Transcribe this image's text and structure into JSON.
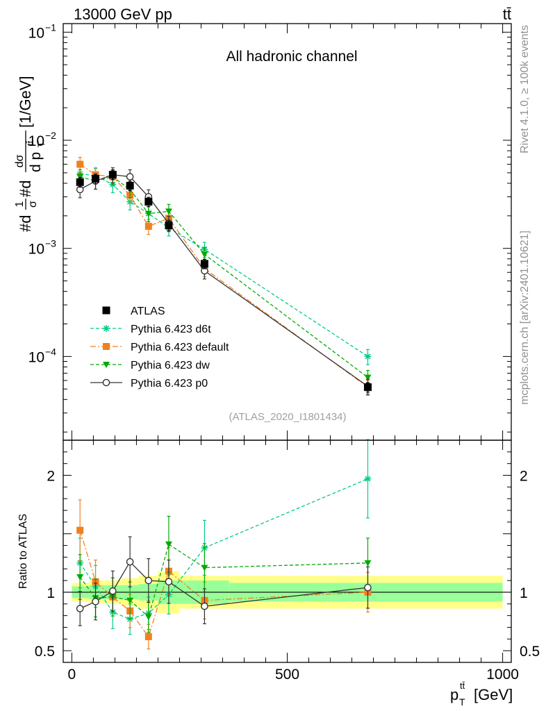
{
  "header": {
    "energy_label": "13000 GeV pp",
    "process_label": "tt̄",
    "side_label_top": "Rivet 4.1.0, ≥ 100k events",
    "side_label_bottom": "mcplots.cern.ch [arXiv:2401.10621]",
    "channel_label": "All hadronic channel",
    "analysis_id": "(ATLAS_2020_I1801434)"
  },
  "colors": {
    "data": "#000000",
    "d6t": "#00cc88",
    "default": "#f08020",
    "dw": "#00aa00",
    "p0": "#333333",
    "band_inner": "#99ff99",
    "band_outer": "#ffff88"
  },
  "chart_data": [
    {
      "type": "line",
      "panel": "main",
      "title": "All hadronic channel",
      "xlabel": "",
      "ylabel": "#d1/σ#ddσ^{tt̄}/d p_T^{tt̄} [1/GeV]",
      "ylabel_parts": {
        "prefix": "#d",
        "frac1_num": "1",
        "frac1_den": "σ",
        "mid": "#d",
        "frac2_num": "dσ",
        "frac2_den": "d p",
        "sub": "T",
        "sup": "tt̄",
        "unit": "[1/GeV]"
      },
      "yscale": "log",
      "xlim": [
        -20,
        1020
      ],
      "ylim": [
        1.68e-05,
        0.12
      ],
      "y_ticks": [
        0.1,
        0.01,
        0.001,
        0.0001
      ],
      "y_tick_labels": [
        {
          "base": "10",
          "exp": "−1"
        },
        {
          "base": "10",
          "exp": "−2"
        },
        {
          "base": "10",
          "exp": "−3"
        },
        {
          "base": "10",
          "exp": "−4"
        }
      ],
      "series": [
        {
          "name": "ATLAS",
          "key": "data",
          "x": [
            19,
            55,
            95,
            135,
            178,
            225,
            308,
            687
          ],
          "y": [
            0.0041,
            0.0044,
            0.0048,
            0.0038,
            0.0027,
            0.00163,
            0.00072,
            5.2e-05
          ]
        },
        {
          "name": "Pythia 6.423 d6t",
          "key": "d6t",
          "x": [
            19,
            55,
            95,
            135,
            178,
            225,
            308,
            687
          ],
          "y": [
            0.0049,
            0.0047,
            0.0039,
            0.0027,
            0.0021,
            0.00155,
            0.00098,
            0.0001
          ]
        },
        {
          "name": "Pythia 6.423 default",
          "key": "default",
          "x": [
            19,
            55,
            95,
            135,
            178,
            225,
            308,
            687
          ],
          "y": [
            0.006,
            0.0048,
            0.0046,
            0.0031,
            0.0016,
            0.0019,
            0.00065,
            5.2e-05
          ]
        },
        {
          "name": "Pythia 6.423 dw",
          "key": "dw",
          "x": [
            19,
            55,
            95,
            135,
            178,
            225,
            308,
            687
          ],
          "y": [
            0.0046,
            0.0042,
            0.0046,
            0.0035,
            0.0021,
            0.0022,
            0.00088,
            6.4e-05
          ]
        },
        {
          "name": "Pythia 6.423 p0",
          "key": "p0",
          "x": [
            19,
            55,
            95,
            135,
            178,
            225,
            308,
            687
          ],
          "y": [
            0.0035,
            0.0042,
            0.0048,
            0.0046,
            0.003,
            0.0017,
            0.00062,
            5.3e-05
          ]
        }
      ],
      "legend": [
        "ATLAS",
        "Pythia 6.423 d6t",
        "Pythia 6.423 default",
        "Pythia 6.423 dw",
        "Pythia 6.423 p0"
      ]
    },
    {
      "type": "line",
      "panel": "ratio",
      "xlabel": "p_T^{tt̄} [GeV]",
      "xlabel_parts": {
        "base": "p",
        "sub": "T",
        "sup": "tt̄",
        "unit": "[GeV]"
      },
      "ylabel": "Ratio to ATLAS",
      "xlim": [
        -20,
        1020
      ],
      "ylim": [
        0.4,
        2.3
      ],
      "x_ticks": [
        0,
        500,
        1000
      ],
      "x_tick_labels": [
        "0",
        "500",
        "1000"
      ],
      "y_ticks": [
        0.5,
        1,
        2
      ],
      "y_tick_labels": [
        "0.5",
        "1",
        "2"
      ],
      "bins": [
        0,
        40,
        75,
        115,
        155,
        200,
        250,
        365,
        1000
      ],
      "band_inner_half": [
        0.05,
        0.06,
        0.06,
        0.06,
        0.07,
        0.1,
        0.1,
        0.08
      ],
      "band_outer_half": [
        0.08,
        0.1,
        0.1,
        0.12,
        0.14,
        0.18,
        0.14,
        0.14
      ],
      "series": [
        {
          "name": "Pythia 6.423 d6t",
          "key": "d6t",
          "x": [
            19,
            55,
            95,
            135,
            178,
            225,
            308,
            687
          ],
          "y": [
            1.25,
            1.05,
            0.83,
            0.77,
            0.82,
            0.98,
            1.38,
            1.97
          ]
        },
        {
          "name": "Pythia 6.423 default",
          "key": "default",
          "x": [
            19,
            55,
            95,
            135,
            178,
            225,
            308,
            687
          ],
          "y": [
            1.53,
            1.09,
            0.96,
            0.84,
            0.62,
            1.18,
            0.93,
            1.0
          ]
        },
        {
          "name": "Pythia 6.423 dw",
          "key": "dw",
          "x": [
            19,
            55,
            95,
            135,
            178,
            225,
            308,
            687
          ],
          "y": [
            1.13,
            0.95,
            0.96,
            0.93,
            0.79,
            1.41,
            1.21,
            1.25
          ]
        },
        {
          "name": "Pythia 6.423 p0",
          "key": "p0",
          "x": [
            19,
            55,
            95,
            135,
            178,
            225,
            308,
            687
          ],
          "y": [
            0.86,
            0.92,
            1.01,
            1.26,
            1.1,
            1.09,
            0.88,
            1.04
          ]
        }
      ]
    }
  ]
}
